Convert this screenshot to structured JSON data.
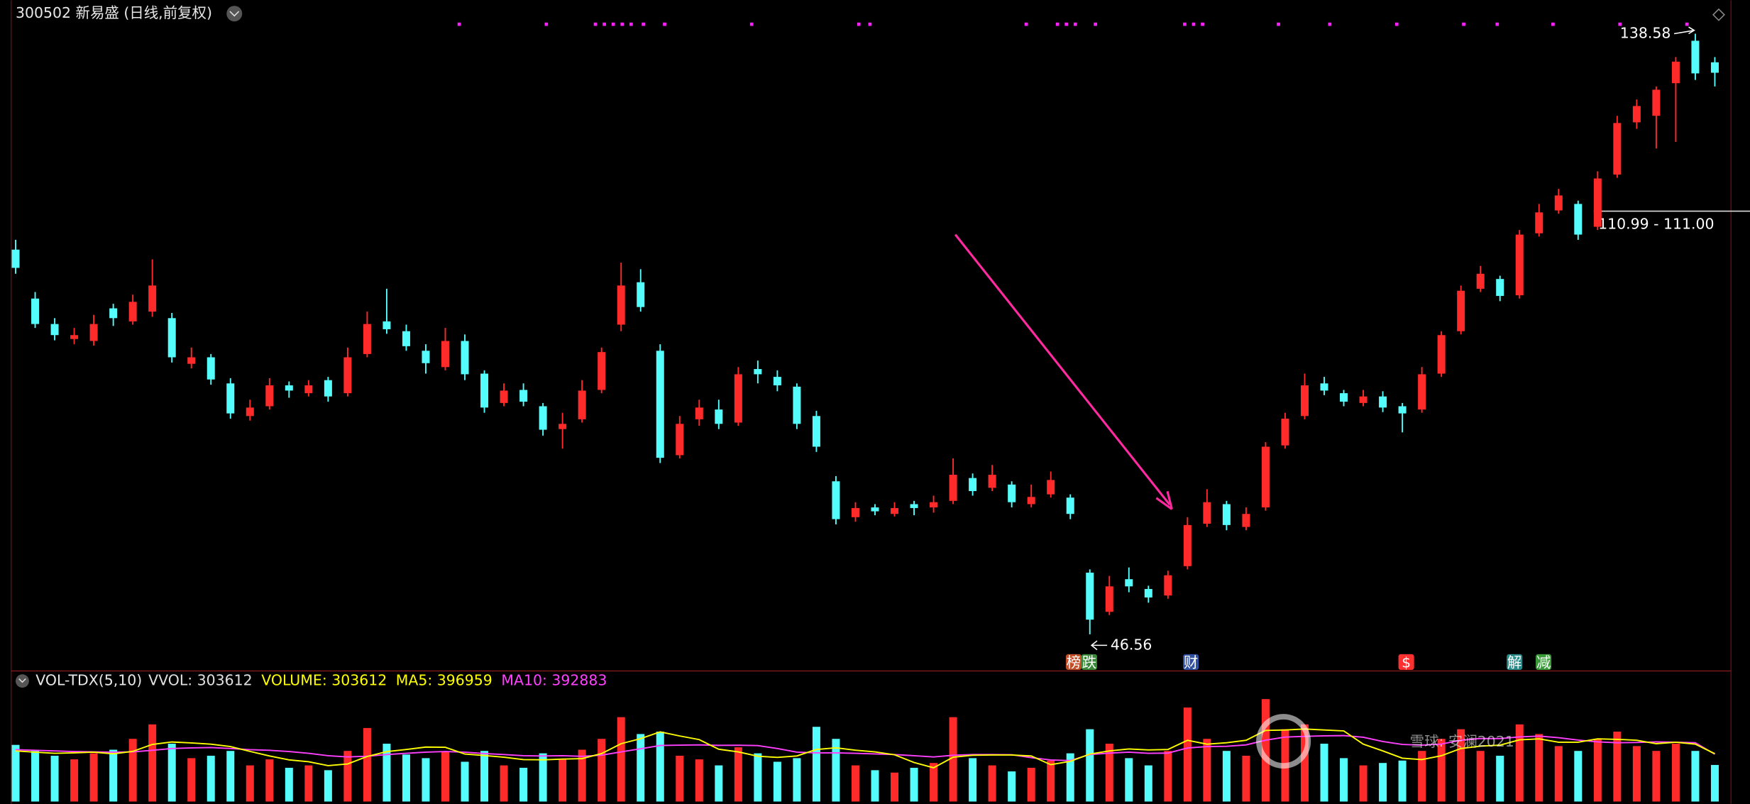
{
  "chart_data": {
    "type": "candlestick",
    "title": "300502 新易盛 (日线,前复权)",
    "ylim": [
      41.11,
      143.71
    ],
    "candles": [
      [
        105.5,
        107,
        101.8,
        102.7
      ],
      [
        98,
        99,
        93.5,
        94.1
      ],
      [
        94.1,
        95,
        91.6,
        92.4
      ],
      [
        91.8,
        93.5,
        91,
        92.4
      ],
      [
        91.5,
        95.5,
        90.8,
        94.1
      ],
      [
        96.5,
        97.2,
        93.8,
        95
      ],
      [
        94.5,
        98.6,
        94,
        97.5
      ],
      [
        96,
        104,
        95.2,
        100
      ],
      [
        95,
        95.8,
        88.2,
        89
      ],
      [
        88,
        90.5,
        87.3,
        89
      ],
      [
        89,
        89.5,
        84.8,
        85.6
      ],
      [
        85,
        85.8,
        79.6,
        80.4
      ],
      [
        80,
        82.5,
        79.3,
        81.3
      ],
      [
        81.5,
        85.8,
        81,
        84.7
      ],
      [
        84.7,
        85.3,
        82.8,
        83.9
      ],
      [
        83.5,
        85.5,
        83,
        84.7
      ],
      [
        85.5,
        86,
        82.2,
        83
      ],
      [
        83.5,
        90.5,
        83,
        89
      ],
      [
        89.5,
        96,
        89,
        94.1
      ],
      [
        94.5,
        99.5,
        92.6,
        93.3
      ],
      [
        93,
        94,
        90,
        90.7
      ],
      [
        90,
        91,
        86.5,
        88.1
      ],
      [
        87.5,
        93.5,
        87,
        91.5
      ],
      [
        91.5,
        92.5,
        85.5,
        86.4
      ],
      [
        86.5,
        87,
        80.5,
        81.3
      ],
      [
        82,
        85,
        81.5,
        83.9
      ],
      [
        84,
        85,
        81.5,
        82.2
      ],
      [
        81.5,
        82,
        77,
        77.9
      ],
      [
        78,
        80.5,
        75,
        78.8
      ],
      [
        79.5,
        85.5,
        79,
        83.9
      ],
      [
        84,
        90.5,
        83.5,
        89.8
      ],
      [
        94,
        103.5,
        93,
        100
      ],
      [
        100.5,
        102.5,
        96,
        96.7
      ],
      [
        90,
        91,
        72.8,
        73.6
      ],
      [
        74,
        80,
        73.5,
        78.8
      ],
      [
        79.5,
        82.5,
        78.5,
        81.3
      ],
      [
        81,
        82.5,
        78,
        78.8
      ],
      [
        79,
        87.5,
        78.5,
        86.4
      ],
      [
        87.2,
        88.5,
        85,
        86.4
      ],
      [
        86,
        87,
        83.8,
        84.7
      ],
      [
        84.5,
        85,
        78,
        78.8
      ],
      [
        80,
        80.8,
        74.5,
        75.3
      ],
      [
        70,
        70.8,
        63.4,
        64.2
      ],
      [
        64.5,
        66.8,
        63.8,
        65.9
      ],
      [
        66,
        66.5,
        64.8,
        65.4
      ],
      [
        65,
        66.8,
        64.6,
        65.9
      ],
      [
        66.5,
        67,
        64.8,
        65.9
      ],
      [
        66,
        67.8,
        65.2,
        66.8
      ],
      [
        67,
        73.5,
        66.5,
        71
      ],
      [
        70.5,
        71.2,
        67.8,
        68.5
      ],
      [
        69,
        72.5,
        68.5,
        71
      ],
      [
        69.5,
        70,
        66,
        66.8
      ],
      [
        66.5,
        69.5,
        66,
        67.6
      ],
      [
        68,
        71.5,
        67.5,
        70.2
      ],
      [
        67.5,
        68,
        64.2,
        65
      ],
      [
        56,
        56.5,
        46.56,
        48.8
      ],
      [
        50,
        55.5,
        49.5,
        53.9
      ],
      [
        55,
        56.8,
        53,
        53.9
      ],
      [
        53.5,
        54,
        51.4,
        52.2
      ],
      [
        52.5,
        56.3,
        52,
        55.6
      ],
      [
        57,
        64.5,
        56.5,
        63.3
      ],
      [
        63.5,
        68.8,
        63,
        66.8
      ],
      [
        66.5,
        67,
        62.5,
        63.3
      ],
      [
        63,
        66,
        62.5,
        65
      ],
      [
        66,
        76,
        65.5,
        75.3
      ],
      [
        75.5,
        80.5,
        75,
        79.6
      ],
      [
        80,
        86.5,
        79.5,
        84.7
      ],
      [
        85,
        86,
        83.2,
        83.9
      ],
      [
        83.5,
        84,
        81.5,
        82.2
      ],
      [
        82,
        84,
        81.5,
        83
      ],
      [
        83,
        83.8,
        80.6,
        81.3
      ],
      [
        81.5,
        82,
        77.5,
        80.4
      ],
      [
        81,
        87.5,
        80.5,
        86.4
      ],
      [
        86.5,
        93,
        86,
        92.4
      ],
      [
        93,
        100,
        92.5,
        99.2
      ],
      [
        99.5,
        103,
        99,
        101.8
      ],
      [
        101,
        101.5,
        97.6,
        98.4
      ],
      [
        98.5,
        108.5,
        98,
        107.8
      ],
      [
        108,
        112.5,
        107.5,
        111.2
      ],
      [
        111.5,
        114.8,
        111,
        113.8
      ],
      [
        112.5,
        113,
        107,
        107.8
      ],
      [
        109,
        117.5,
        108.5,
        116.4
      ],
      [
        117,
        126,
        116.5,
        124.9
      ],
      [
        125,
        128.5,
        124,
        127.5
      ],
      [
        126,
        130.5,
        121,
        130
      ],
      [
        131,
        135,
        122,
        134.3
      ],
      [
        137.5,
        138.58,
        131.5,
        132.5
      ],
      [
        134.2,
        135,
        130.5,
        132.6
      ]
    ],
    "up_color": "#ff2a2a",
    "down_color": "#54fcfc",
    "high_label": "138.58",
    "low_label": "46.56",
    "range_label": "110.99 - 111.00",
    "badges": [
      {
        "text": "榜",
        "color": "#c0502a"
      },
      {
        "text": "跌",
        "color": "#3a8a3a"
      },
      {
        "text": "财",
        "color": "#3050a0"
      },
      {
        "text": "$",
        "color": "#ff3030"
      },
      {
        "text": "解",
        "color": "#2a8a8a"
      },
      {
        "text": "减",
        "color": "#3a9a3a"
      }
    ],
    "volume_panel": {
      "indicator": "VOL-TDX(5,10)",
      "legend": [
        {
          "label": "VVOL: 303612",
          "color": "#e0e0e0"
        },
        {
          "label": "VOLUME: 303612",
          "color": "#ffff00"
        },
        {
          "label": "MA5: 396959",
          "color": "#ffff00"
        },
        {
          "label": "MA10: 392883",
          "color": "#ff40ff"
        }
      ],
      "ylim": [
        0,
        1000000
      ],
      "values": [
        470000,
        420000,
        380000,
        350000,
        400000,
        430000,
        520000,
        640000,
        480000,
        360000,
        380000,
        420000,
        300000,
        350000,
        280000,
        300000,
        260000,
        420000,
        610000,
        480000,
        390000,
        360000,
        410000,
        330000,
        420000,
        300000,
        280000,
        400000,
        350000,
        430000,
        520000,
        700000,
        560000,
        580000,
        380000,
        350000,
        300000,
        450000,
        400000,
        330000,
        360000,
        620000,
        520000,
        300000,
        260000,
        240000,
        280000,
        320000,
        700000,
        360000,
        300000,
        250000,
        280000,
        340000,
        400000,
        600000,
        480000,
        360000,
        300000,
        420000,
        780000,
        520000,
        420000,
        380000,
        850000,
        600000,
        640000,
        480000,
        360000,
        300000,
        320000,
        340000,
        420000,
        520000,
        600000,
        420000,
        380000,
        640000,
        560000,
        460000,
        420000,
        520000,
        580000,
        460000,
        420000,
        480000,
        420000,
        303612
      ],
      "ma5": [
        420000,
        410000,
        400000,
        404000,
        410000,
        396000,
        416000,
        474000,
        494000,
        486000,
        476000,
        456000,
        416000,
        378000,
        346000,
        330000,
        298000,
        312000,
        374000,
        414000,
        432000,
        452000,
        450000,
        394000,
        382000,
        368000,
        348000,
        346000,
        352000,
        356000,
        398000,
        480000,
        522000,
        578000,
        544000,
        514000,
        434000,
        412000,
        376000,
        366000,
        378000,
        432000,
        446000,
        426000,
        412000,
        388000,
        324000,
        280000,
        368000,
        384000,
        386000,
        386000,
        378000,
        306000,
        334000,
        394000,
        420000,
        436000,
        428000,
        432000,
        508000,
        476000,
        488000,
        508000,
        590000,
        594000,
        602000,
        594000,
        586000,
        476000,
        420000,
        360000,
        348000,
        380000,
        440000,
        460000,
        468000,
        512000,
        520000,
        492000,
        492000,
        520000,
        516000,
        508000,
        480000,
        492000,
        476000,
        396959
      ],
      "ma10": [
        430000,
        425000,
        420000,
        415000,
        412000,
        410000,
        412000,
        425000,
        440000,
        445000,
        448000,
        440000,
        430000,
        425000,
        415000,
        400000,
        380000,
        370000,
        376000,
        390000,
        400000,
        410000,
        415000,
        410000,
        398000,
        390000,
        380000,
        378000,
        380000,
        375000,
        385000,
        412000,
        438000,
        465000,
        468000,
        470000,
        466000,
        467000,
        464000,
        440000,
        410000,
        404000,
        404000,
        400000,
        395000,
        390000,
        380000,
        370000,
        384000,
        390000,
        390000,
        388000,
        364000,
        345000,
        340000,
        390000,
        402000,
        410000,
        400000,
        402000,
        444000,
        456000,
        458000,
        470000,
        509000,
        535000,
        541000,
        545000,
        547000,
        533000,
        498000,
        474000,
        468000,
        477000,
        508000,
        523000,
        522000,
        536000,
        543000,
        530000,
        510000,
        495000,
        488000,
        490000,
        495000,
        492000,
        488000,
        392883
      ]
    },
    "watermark": "雪球: 安澜2021"
  }
}
